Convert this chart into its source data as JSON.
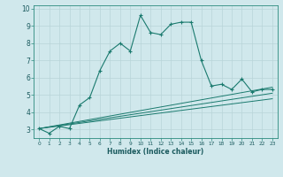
{
  "title": "",
  "xlabel": "Humidex (Indice chaleur)",
  "ylabel": "",
  "background_color": "#d0e8ec",
  "grid_color": "#b8d4d8",
  "line_color": "#1a7a6e",
  "xlim": [
    -0.5,
    23.5
  ],
  "ylim": [
    2.5,
    10.2
  ],
  "yticks": [
    3,
    4,
    5,
    6,
    7,
    8,
    9,
    10
  ],
  "xticks": [
    0,
    1,
    2,
    3,
    4,
    5,
    6,
    7,
    8,
    9,
    10,
    11,
    12,
    13,
    14,
    15,
    16,
    17,
    18,
    19,
    20,
    21,
    22,
    23
  ],
  "main_series": {
    "x": [
      0,
      1,
      2,
      3,
      4,
      5,
      6,
      7,
      8,
      9,
      10,
      11,
      12,
      13,
      14,
      15,
      16,
      17,
      18,
      19,
      20,
      21,
      22,
      23
    ],
    "y": [
      3.05,
      2.78,
      3.18,
      3.05,
      4.42,
      4.85,
      6.42,
      7.55,
      8.0,
      7.55,
      9.62,
      8.62,
      8.5,
      9.1,
      9.22,
      9.22,
      7.0,
      5.52,
      5.62,
      5.32,
      5.92,
      5.18,
      5.32,
      5.32
    ]
  },
  "line1": {
    "x": [
      0,
      23
    ],
    "y": [
      3.05,
      5.45
    ]
  },
  "line2": {
    "x": [
      0,
      23
    ],
    "y": [
      3.05,
      5.1
    ]
  },
  "line3": {
    "x": [
      0,
      23
    ],
    "y": [
      3.05,
      4.78
    ]
  }
}
